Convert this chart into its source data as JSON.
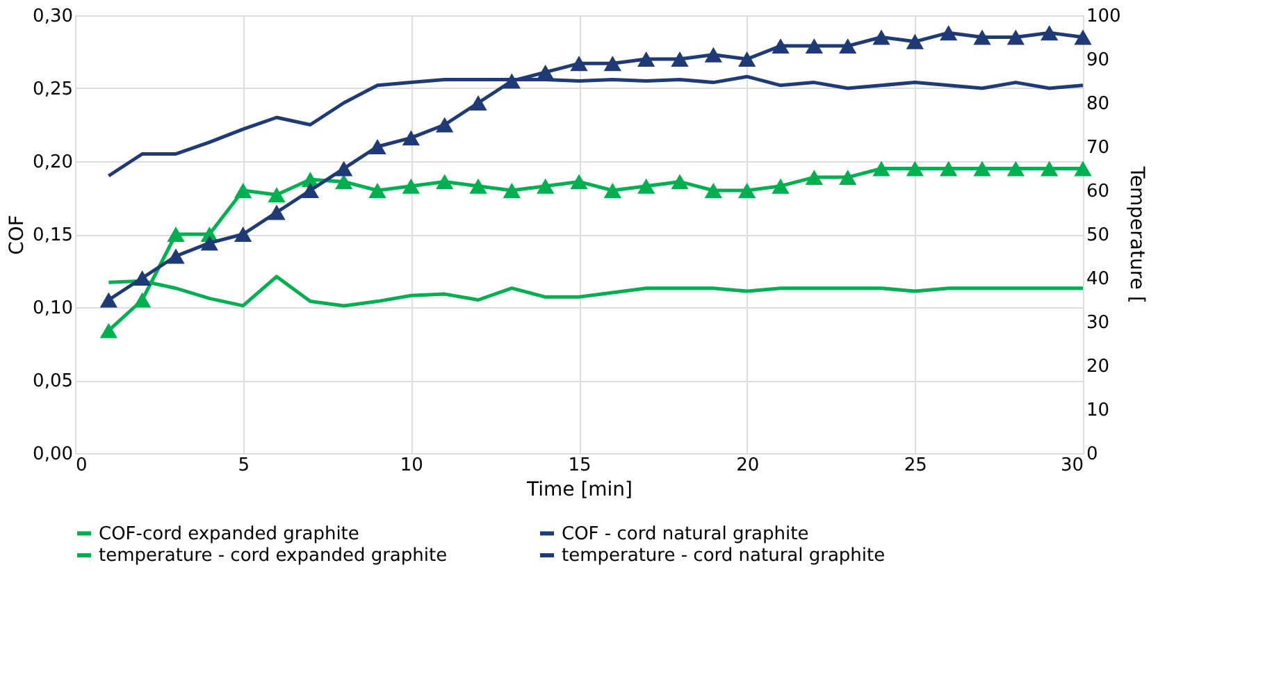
{
  "chart_data": {
    "type": "line",
    "xlabel": "Time [min]",
    "ylabel": "COF",
    "y2label": "Temperature [",
    "x": [
      1,
      2,
      3,
      4,
      5,
      6,
      7,
      8,
      9,
      10,
      11,
      12,
      13,
      14,
      15,
      16,
      17,
      18,
      19,
      20,
      21,
      22,
      23,
      24,
      25,
      26,
      27,
      28,
      29,
      30
    ],
    "xlim": [
      0,
      30
    ],
    "xticks": [
      0,
      5,
      10,
      15,
      20,
      25,
      30
    ],
    "ylim": [
      0,
      0.3
    ],
    "yticks": [
      {
        "value": 0,
        "label": "0,00"
      },
      {
        "value": 0.05,
        "label": "0,05"
      },
      {
        "value": 0.1,
        "label": "0,10"
      },
      {
        "value": 0.15,
        "label": "0,15"
      },
      {
        "value": 0.2,
        "label": "0,20"
      },
      {
        "value": 0.25,
        "label": "0,25"
      },
      {
        "value": 0.3,
        "label": "0,30"
      }
    ],
    "y2lim": [
      0,
      100
    ],
    "y2ticks": [
      0,
      10,
      20,
      30,
      40,
      50,
      60,
      70,
      80,
      90,
      100
    ],
    "grid": true,
    "legend": "bottom",
    "marker": "none",
    "line_style": "solid",
    "series": [
      {
        "name": "COF-cord expanded graphite",
        "color": "#00b050",
        "values": [
          0.117,
          0.118,
          0.113,
          0.106,
          0.101,
          0.121,
          0.104,
          0.101,
          0.104,
          0.108,
          0.109,
          0.105,
          0.113,
          0.107,
          0.107,
          0.11,
          0.113,
          0.113,
          0.113,
          0.111,
          0.113,
          0.113,
          0.113,
          0.113,
          0.111,
          0.113,
          0.113,
          0.113,
          0.113,
          0.113
        ]
      },
      {
        "name": "COF - cord natural graphite",
        "color": "#1f3a75",
        "values": [
          0.19,
          0.205,
          0.205,
          0.213,
          0.222,
          0.23,
          0.225,
          0.24,
          0.252,
          0.254,
          0.256,
          0.256,
          0.256,
          0.256,
          0.255,
          0.256,
          0.255,
          0.256,
          0.254,
          0.258,
          0.252,
          0.254,
          0.25,
          0.252,
          0.254,
          0.252,
          0.25,
          0.254,
          0.25,
          0.252
        ]
      },
      {
        "name": "temperature - cord expanded graphite",
        "color": "#00b050",
        "axis": "y2",
        "marker": "triangle",
        "values": [
          28,
          35,
          50,
          50,
          60,
          59,
          62.5,
          62,
          60,
          61,
          62,
          61,
          60,
          61,
          62,
          60,
          61,
          62,
          60,
          60,
          61,
          63,
          63,
          65,
          65,
          65,
          65,
          65,
          65,
          65
        ]
      },
      {
        "name": "temperature - cord natural graphite",
        "color": "#1f3a75",
        "axis": "y2",
        "marker": "triangle",
        "values": [
          35,
          40,
          45,
          48,
          50,
          55,
          60,
          65,
          70,
          72,
          75,
          80,
          85,
          87,
          89,
          89,
          90,
          90,
          91,
          90,
          93,
          93,
          93,
          95,
          94,
          96,
          95,
          95,
          96,
          95
        ]
      }
    ]
  }
}
